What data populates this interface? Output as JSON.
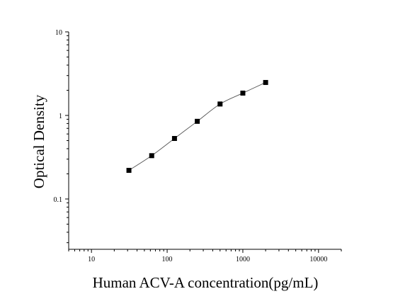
{
  "chart_data": {
    "type": "scatter",
    "title": "",
    "xlabel": "Human ACV-A concentration(pg/mL)",
    "ylabel": "Optical Density",
    "xscale": "log",
    "yscale": "log",
    "xlim": [
      5,
      20000
    ],
    "ylim": [
      0.025,
      10
    ],
    "grid": false,
    "legend": "none",
    "x_ticks": [
      10,
      100,
      1000,
      10000
    ],
    "x_tick_labels": [
      "10",
      "100",
      "1000",
      "10000"
    ],
    "y_ticks": [
      0.1,
      1,
      10
    ],
    "y_tick_labels": [
      "0.1",
      "1",
      "10"
    ],
    "series": [
      {
        "x": [
          31.25,
          62.5,
          125,
          250,
          500,
          1000,
          2000
        ],
        "y": [
          0.22,
          0.33,
          0.53,
          0.85,
          1.37,
          1.85,
          2.48
        ],
        "marker": "square",
        "fit_line": true
      }
    ]
  },
  "colors": {
    "marker": "#000000",
    "axis": "#000000",
    "fit_line": "#555555"
  }
}
